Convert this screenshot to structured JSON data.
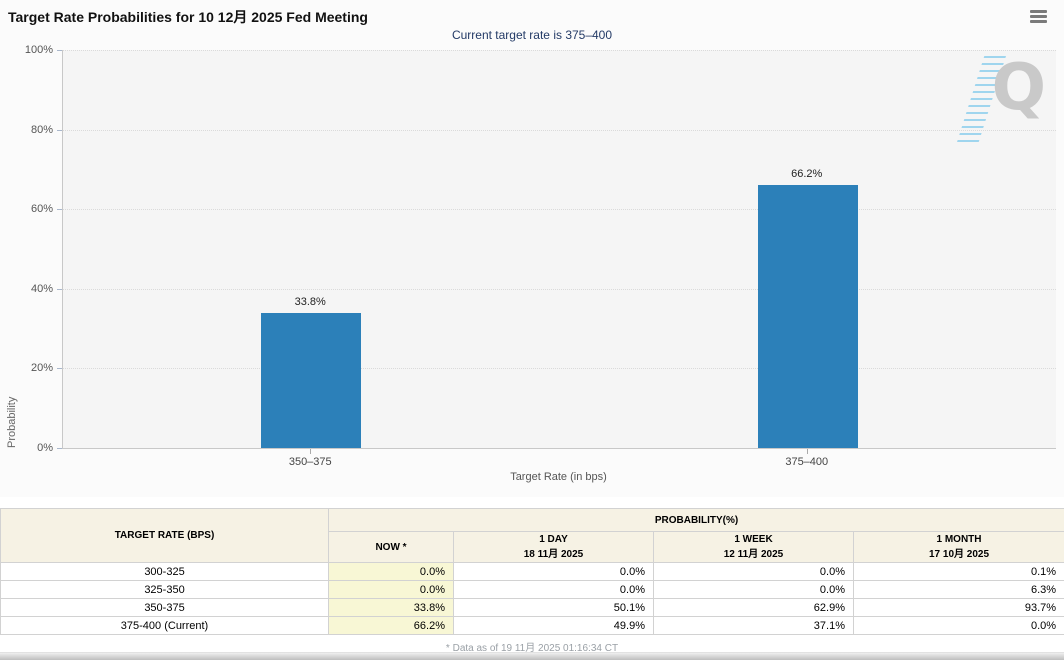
{
  "header": {
    "title": "Target Rate Probabilities for 10 12月 2025 Fed Meeting",
    "subtitle": "Current target rate is 375–400"
  },
  "chart_data": {
    "type": "bar",
    "categories": [
      "350–375",
      "375–400"
    ],
    "values": [
      33.8,
      66.2
    ],
    "bar_labels": [
      "33.8%",
      "66.2%"
    ],
    "title": "Target Rate Probabilities for 10 12月 2025 Fed Meeting",
    "xlabel": "Target Rate (in bps)",
    "ylabel": "Probability",
    "ylim": [
      0,
      100
    ],
    "ytick_labels": [
      "0%",
      "20%",
      "40%",
      "60%",
      "80%",
      "100%"
    ],
    "grid": "horizontal-dotted",
    "legend": "none",
    "bar_color": "#2c80b9",
    "watermark_letter": "Q"
  },
  "table": {
    "col_headers": {
      "target_rate": "TARGET RATE (BPS)",
      "probability_group": "PROBABILITY(%)",
      "now": "NOW *",
      "day_label": "1 DAY",
      "day_date": "18 11月 2025",
      "week_label": "1 WEEK",
      "week_date": "12 11月 2025",
      "month_label": "1 MONTH",
      "month_date": "17 10月 2025"
    },
    "rows": [
      {
        "rate": "300-325",
        "now": "0.0%",
        "day": "0.0%",
        "week": "0.0%",
        "month": "0.1%"
      },
      {
        "rate": "325-350",
        "now": "0.0%",
        "day": "0.0%",
        "week": "0.0%",
        "month": "6.3%"
      },
      {
        "rate": "350-375",
        "now": "33.8%",
        "day": "50.1%",
        "week": "62.9%",
        "month": "93.7%"
      },
      {
        "rate": "375-400 (Current)",
        "now": "66.2%",
        "day": "49.9%",
        "week": "37.1%",
        "month": "0.0%"
      }
    ]
  },
  "footer": {
    "note": "* Data as of 19 11月 2025 01:16:34 CT"
  },
  "colors": {
    "bar": "#2c80b9",
    "subtitle_text": "#233a66",
    "now_column_bg": "#f8f7d5",
    "table_header_bg": "#f6f2e4"
  }
}
